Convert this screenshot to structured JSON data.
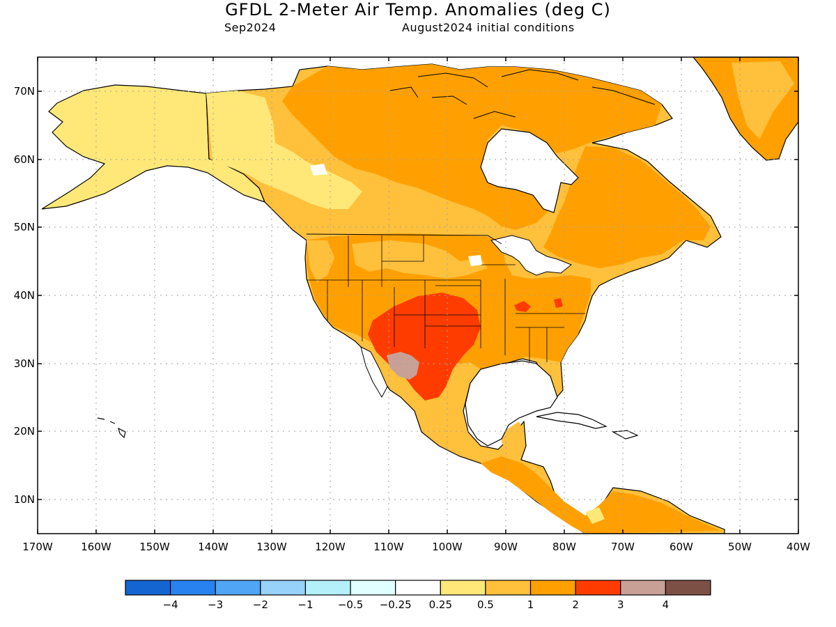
{
  "title": "GFDL 2-Meter Air Temp. Anomalies (deg C)",
  "subtitle_left": "Sep2024",
  "subtitle_right": "August2024 initial conditions",
  "lat_labels": [
    "70N",
    "60N",
    "50N",
    "40N",
    "30N",
    "20N",
    "10N"
  ],
  "lon_labels": [
    "170W",
    "160W",
    "150W",
    "140W",
    "130W",
    "120W",
    "110W",
    "100W",
    "90W",
    "80W",
    "70W",
    "60W",
    "50W",
    "40W"
  ],
  "colorbar": {
    "colors": [
      "#1464d2",
      "#2882f0",
      "#50a5f5",
      "#96d2fa",
      "#b4f0fa",
      "#e1ffff",
      "#ffffff",
      "#ffe878",
      "#ffc03c",
      "#ffa000",
      "#ff3c00",
      "#c8a096",
      "#7d5046"
    ],
    "labels": [
      "−4",
      "−3",
      "−2",
      "−1",
      "−0.5",
      "−0.25",
      "0.25",
      "0.5",
      "1",
      "2",
      "3",
      "4"
    ]
  },
  "map_colors": {
    "pale": "#ffe878",
    "light_orange": "#ffc03c",
    "orange": "#ffa000",
    "red": "#ff3c00",
    "brown": "#c8a096",
    "outline": "#000000",
    "grid": "#a0a0a0"
  }
}
